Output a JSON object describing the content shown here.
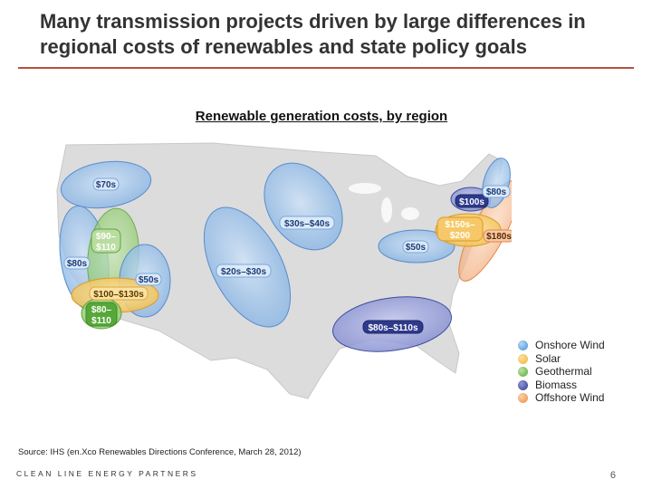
{
  "slide": {
    "title": "Many transmission projects driven by large differences in regional costs of renewables and state policy goals",
    "map_title": "Renewable generation costs, by region",
    "source": "Source: IHS (en.Xco Renewables Directions Conference, March 28, 2012)",
    "footer_logo": "CLEAN LINE ENERGY PARTNERS",
    "page_number": "6"
  },
  "regions": [
    {
      "id": "nw",
      "label": "$70s",
      "type": "Onshore Wind"
    },
    {
      "id": "nca",
      "label_lines": [
        "$90–",
        "$110"
      ],
      "type": "Geothermal"
    },
    {
      "id": "wca",
      "label": "$80s",
      "type": "Onshore Wind"
    },
    {
      "id": "swwind",
      "label": "$50s",
      "type": "Onshore Wind"
    },
    {
      "id": "swsolar",
      "label": "$100–$130s",
      "type": "Solar"
    },
    {
      "id": "scal",
      "label_lines": [
        "$80–",
        "$110"
      ],
      "type": "Geothermal"
    },
    {
      "id": "plains",
      "label": "$20s–$30s",
      "type": "Onshore Wind"
    },
    {
      "id": "upperplains",
      "label": "$30s–$40s",
      "type": "Onshore Wind"
    },
    {
      "id": "ohio",
      "label": "$50s",
      "type": "Onshore Wind"
    },
    {
      "id": "midatl",
      "label_lines": [
        "$150s–",
        "$200"
      ],
      "type": "Solar"
    },
    {
      "id": "offshore",
      "label": "$180s",
      "type": "Offshore Wind"
    },
    {
      "id": "ny",
      "label": "$100s",
      "type": "Biomass"
    },
    {
      "id": "ne",
      "label": "$80s",
      "type": "Onshore Wind"
    },
    {
      "id": "se",
      "label": "$80s–$110s",
      "type": "Biomass"
    }
  ],
  "legend": [
    {
      "label": "Onshore Wind",
      "color": "#3f8fd9"
    },
    {
      "label": "Solar",
      "color": "#f3b233"
    },
    {
      "label": "Geothermal",
      "color": "#56a83a"
    },
    {
      "label": "Biomass",
      "color": "#2e3a8c"
    },
    {
      "label": "Offshore Wind",
      "color": "#ee8a3c"
    }
  ]
}
